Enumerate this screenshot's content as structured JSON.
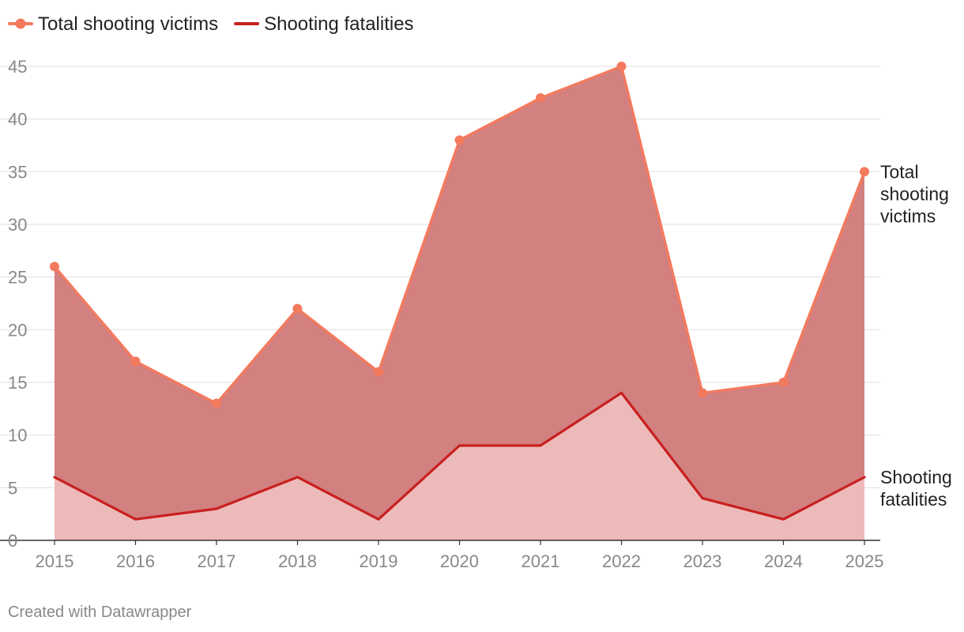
{
  "chart_data": {
    "type": "area",
    "categories": [
      "2015",
      "2016",
      "2017",
      "2018",
      "2019",
      "2020",
      "2021",
      "2022",
      "2023",
      "2024",
      "2025"
    ],
    "series": [
      {
        "name": "Total shooting victims",
        "values": [
          26,
          17,
          13,
          22,
          16,
          38,
          42,
          45,
          14,
          15,
          35
        ],
        "line_color": "#f47a5e",
        "fill_color": "#d28080",
        "markers": true,
        "end_label": [
          "Total",
          "shooting",
          "victims"
        ]
      },
      {
        "name": "Shooting fatalities",
        "values": [
          6,
          2,
          3,
          6,
          2,
          9,
          9,
          14,
          4,
          2,
          6
        ],
        "line_color": "#c8201f",
        "fill_color": "#edbaba",
        "markers": false,
        "end_label": [
          "Shooting",
          "fatalities"
        ]
      }
    ],
    "ylim": [
      0,
      45
    ],
    "yticks": [
      0,
      5,
      10,
      15,
      20,
      25,
      30,
      35,
      40,
      45
    ],
    "grid": true,
    "legend_position": "top-left",
    "xlabel": "",
    "ylabel": ""
  },
  "credit": "Created with Datawrapper"
}
